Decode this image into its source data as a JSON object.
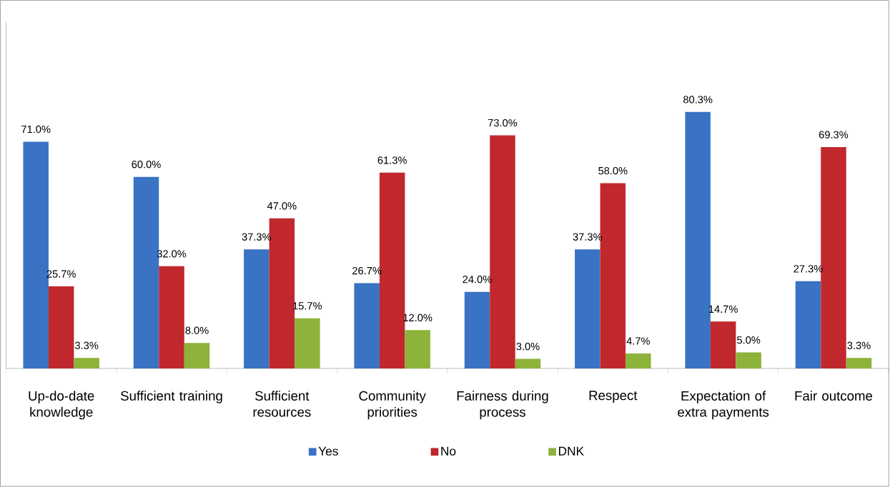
{
  "chart_data": {
    "type": "bar",
    "legend": "bottom",
    "categories": [
      "Up-do-date knowledge",
      "Sufficient training",
      "Sufficient resources",
      "Community priorities",
      "Fairness during process",
      "Respect",
      "Expectation of extra payments",
      "Fair outcome"
    ],
    "series": [
      {
        "name": "Yes",
        "color": "#3a73c4",
        "values": [
          71.0,
          60.0,
          37.3,
          26.7,
          24.0,
          37.3,
          80.3,
          27.3
        ],
        "value_labels": [
          "71.0%",
          "60.0%",
          "37.3%",
          "26.7%",
          "24.0%",
          "37.3%",
          "80.3%",
          "27.3%"
        ]
      },
      {
        "name": "No",
        "color": "#c0282d",
        "values": [
          25.7,
          32.0,
          47.0,
          61.3,
          73.0,
          58.0,
          14.7,
          69.3
        ],
        "value_labels": [
          "25.7%",
          "32.0%",
          "47.0%",
          "61.3%",
          "73.0%",
          "58.0%",
          "14.7%",
          "69.3%"
        ]
      },
      {
        "name": "DNK",
        "color": "#8db33a",
        "values": [
          3.3,
          8.0,
          15.7,
          12.0,
          3.0,
          4.7,
          5.0,
          3.3
        ],
        "value_labels": [
          "3.3%",
          "8.0%",
          "15.7%",
          "12.0%",
          "3.0%",
          "4.7%",
          "5.0%",
          "3.3%"
        ]
      }
    ]
  }
}
